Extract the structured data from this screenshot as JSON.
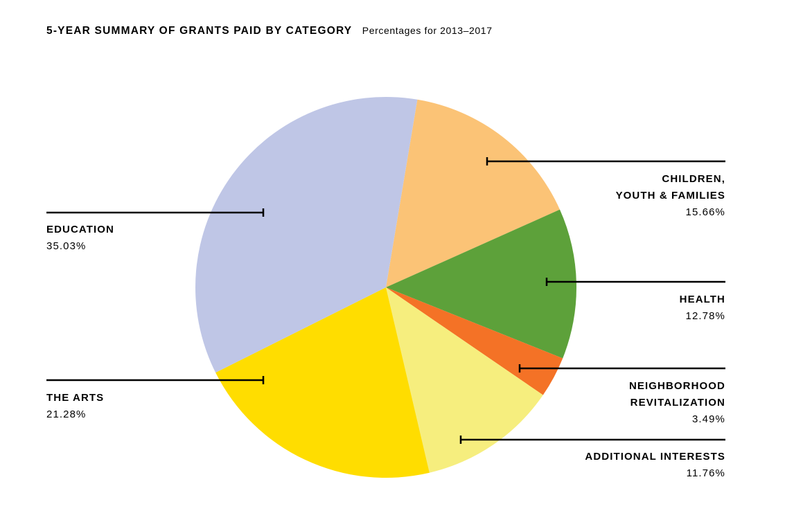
{
  "title": "5-YEAR SUMMARY OF GRANTS PAID BY CATEGORY",
  "subtitle": "Percentages for 2013–2017",
  "chart_data": {
    "type": "pie",
    "title": "5-YEAR SUMMARY OF GRANTS PAID BY CATEGORY",
    "subtitle": "Percentages for 2013–2017",
    "legend": "callouts",
    "slices": [
      {
        "key": "children",
        "label_lines": [
          "CHILDREN,",
          "YOUTH & FAMILIES"
        ],
        "value": 15.66,
        "value_text": "15.66%",
        "color": "#FBC376"
      },
      {
        "key": "health",
        "label_lines": [
          "HEALTH"
        ],
        "value": 12.78,
        "value_text": "12.78%",
        "color": "#5DA13A"
      },
      {
        "key": "neighborhood",
        "label_lines": [
          "NEIGHBORHOOD",
          "REVITALIZATION"
        ],
        "value": 3.49,
        "value_text": "3.49%",
        "color": "#F47226"
      },
      {
        "key": "additional",
        "label_lines": [
          "ADDITIONAL INTERESTS"
        ],
        "value": 11.76,
        "value_text": "11.76%",
        "color": "#F6EE7E"
      },
      {
        "key": "arts",
        "label_lines": [
          "THE ARTS"
        ],
        "value": 21.28,
        "value_text": "21.28%",
        "color": "#FFDD00"
      },
      {
        "key": "education",
        "label_lines": [
          "EDUCATION"
        ],
        "value": 35.03,
        "value_text": "35.03%",
        "color": "#BFC6E6"
      }
    ]
  }
}
